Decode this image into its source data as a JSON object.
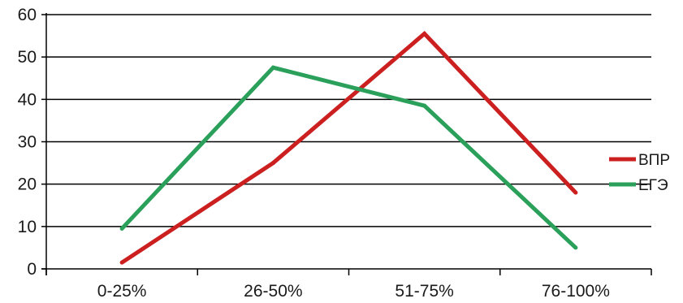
{
  "chart_data": {
    "type": "line",
    "categories": [
      "0-25%",
      "26-50%",
      "51-75%",
      "76-100%"
    ],
    "series": [
      {
        "name": "ВПР",
        "color": "#cc1f1f",
        "values": [
          1.5,
          25,
          55.5,
          18
        ]
      },
      {
        "name": "ЕГЭ",
        "color": "#2aa05a",
        "values": [
          9.5,
          47.5,
          38.5,
          5
        ]
      }
    ],
    "ylim": [
      0,
      60
    ],
    "yticks": [
      "0",
      "10",
      "20",
      "30",
      "40",
      "50",
      "60"
    ],
    "grid": true,
    "legend_position": "right",
    "colors": {
      "axis": "#000000",
      "grid": "#000000"
    }
  }
}
